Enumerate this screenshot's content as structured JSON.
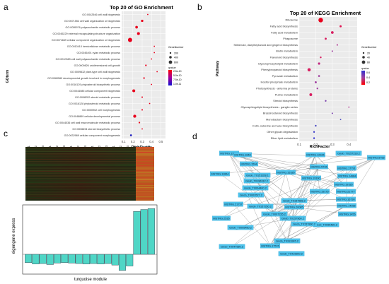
{
  "panels": {
    "a": {
      "letter": "a",
      "title": "Top 20 of GO Enrichment",
      "ylabel": "GOterm",
      "xlabel": "RichFactor",
      "legend_count_title": "GeneNumber",
      "legend_count_values": [
        "200",
        "400",
        "600"
      ],
      "legend_p_title": "qvalue",
      "legend_p_values": [
        "2.5e-10",
        "5.0e-10",
        "7.5e-10",
        "1.0e-11"
      ]
    },
    "b": {
      "letter": "b",
      "title": "Top 20 of KEGG Enrichment",
      "ylabel": "Pathway",
      "xlabel": "RichFactor",
      "legend_count_title": "GeneNumber",
      "legend_count_values": [
        "20",
        "40",
        "60"
      ],
      "legend_p_title": "qvalue",
      "legend_p_values": [
        "0.6",
        "0.4",
        "0.2"
      ]
    },
    "c": {
      "letter": "c",
      "ylabel": "eigengene express",
      "xlabel": "turquoise module"
    },
    "d": {
      "letter": "d"
    }
  },
  "chart_data": [
    {
      "type": "scatter",
      "panel": "a",
      "title": "Top 20 of GO Enrichment",
      "xlabel": "RichFactor",
      "ylabel": "GOterm",
      "xticks": [
        "0.1",
        "0.2",
        "0.3",
        "0.4",
        "0.5"
      ],
      "xlim": [
        0.08,
        0.55
      ],
      "categories": [
        "GO:0042546 cell wall biogenesis",
        "GO:0071554 cell wall organization or biogenesis",
        "GO:0005976 polysaccharide metabolic process",
        "GO:0045229 external encapsulating structure organization",
        "GO:0071669 cellular component organization or biogenesis",
        "GO:0010410 hemicellulose metabolic process",
        "GO:0045491 xylan metabolic process",
        "GO:0010383 cell wall polysaccharide metabolic process",
        "GO:0009826 unidimensional cell growth",
        "GO:0009832 plant-type cell wall biogenesis",
        "GO:0060560 developmental growth involved in morphogenesis",
        "GO:0016129 phytosteroid biosynthetic process",
        "GO:0044085 cellular component biogenesis",
        "GO:0008202 steroid metabolic process",
        "GO:0016128 phytosteroid metabolic process",
        "GO:0000902 cell morphogenesis",
        "GO:0048869 cellular developmental process",
        "GO:0044036 cell wall macromolecule metabolic process",
        "GO:0006694 steroid biosynthetic process",
        "GO:0032989 cellular component morphogenesis"
      ],
      "x": [
        0.36,
        0.3,
        0.24,
        0.26,
        0.17,
        0.43,
        0.43,
        0.4,
        0.34,
        0.46,
        0.32,
        0.4,
        0.21,
        0.3,
        0.38,
        0.3,
        0.22,
        0.27,
        0.3,
        0.18
      ],
      "size": [
        40,
        130,
        160,
        200,
        420,
        30,
        30,
        40,
        60,
        20,
        60,
        20,
        200,
        50,
        20,
        50,
        220,
        60,
        40,
        90
      ],
      "colors": [
        "#e8001c",
        "#e8001c",
        "#e8001c",
        "#e8001c",
        "#e8001c",
        "#e8001c",
        "#e8001c",
        "#e8001c",
        "#e8001c",
        "#e8001c",
        "#e8001c",
        "#e8001c",
        "#e8001c",
        "#e8001c",
        "#e8001c",
        "#e8001c",
        "#e8001c",
        "#e8001c",
        "#e8001c",
        "#2020c0"
      ]
    },
    {
      "type": "scatter",
      "panel": "b",
      "title": "Top 20 of KEGG Enrichment",
      "xlabel": "RichFactor",
      "ylabel": "Pathway",
      "xticks": [
        "0.1",
        "0.2",
        "0.3",
        "0.4"
      ],
      "xlim": [
        0.1,
        0.45
      ],
      "categories": [
        "Ribosome",
        "Fatty acid biosynthesis",
        "Fatty acid metabolism",
        "Phagosome",
        "Stilbenoid, diarylheptanoid and gingerol biosynthesis",
        "Biotin metabolism",
        "Flavonoid biosynthesis",
        "Glycerophospholipid metabolism",
        "Phenylpropanoid biosynthesis",
        "Pyruvate metabolism",
        "Inositol phosphate metabolism",
        "Photosynthesis - antenna proteins",
        "Purine metabolism",
        "Steroid biosynthesis",
        "Glycosphingolipid biosynthesis - ganglio series",
        "Brassinosteroid biosynthesis",
        "Monobactam biosynthesis",
        "Cutin, suberine and wax biosynthesis",
        "Other glycan degradation",
        "Ether lipid metabolism"
      ],
      "x": [
        0.23,
        0.35,
        0.3,
        0.26,
        0.33,
        0.3,
        0.23,
        0.22,
        0.16,
        0.22,
        0.2,
        0.21,
        0.17,
        0.26,
        0.4,
        0.3,
        0.35,
        0.2,
        0.19,
        0.19
      ],
      "size": [
        60,
        12,
        20,
        12,
        6,
        6,
        8,
        14,
        30,
        10,
        12,
        8,
        22,
        8,
        4,
        6,
        4,
        8,
        8,
        8
      ],
      "colors": [
        "#e8001c",
        "#e01050",
        "#d81e60",
        "#d81e60",
        "#b03090",
        "#a040a0",
        "#d81e60",
        "#c02880",
        "#d81e60",
        "#a040a0",
        "#a040a0",
        "#a040a0",
        "#d81e60",
        "#8048b0",
        "#b03090",
        "#8048b0",
        "#5050c0",
        "#4848c0",
        "#3838c8",
        "#3030d0"
      ]
    },
    {
      "type": "bar",
      "panel": "c",
      "xlabel": "turquoise module",
      "ylabel": "eigengene express",
      "categories": [
        "BJ-1",
        "BJ-2",
        "BJ-3",
        "HB-1",
        "HB-2",
        "HB-3",
        "HLJ-1",
        "HLJ-2",
        "HLJ-3",
        "JL-1",
        "JL-2",
        "JL-3",
        "LN-1",
        "LN-2",
        "LN-3",
        "SD-1",
        "SD-2",
        "SD-3"
      ],
      "values": [
        -0.085,
        -0.1,
        -0.095,
        -0.105,
        -0.09,
        -0.085,
        -0.09,
        -0.095,
        -0.1,
        -0.095,
        -0.1,
        -0.095,
        -0.11,
        -0.165,
        -0.12,
        0.44,
        0.46,
        0.47
      ],
      "ylim": [
        -0.2,
        0.5
      ]
    }
  ],
  "network": {
    "genes": [
      "MSTRG.13660",
      "MSTRG.1648",
      "MSTRG.12166",
      "Gnob_T0157233.2",
      "MSTRG.5755",
      "MSTRG.11664",
      "MSTRG.1594",
      "MSTRG.5736",
      "MSTRG.17791",
      "MSTRG.14884",
      "Gnob_T0151328.1",
      "MSTRG.15185",
      "MSTRG.19190",
      "MSTRG.19185",
      "Gnob_T0196312.2",
      "Gnob_T0004400.2",
      "MSTRG.21777",
      "MSTRG.19175",
      "Gnob_T0003527.2",
      "Gnob_T0157588.2",
      "MSTRG.16730",
      "MSTRG.21737",
      "MSTRG.20085",
      "Gnob_T0157250.2",
      "MSTRG.14035",
      "MSTRG.2535",
      "Gnob_T0097235.2",
      "MSTRG.1456",
      "Gnob_T0157960.2",
      "Gnob_T0095480.2",
      "Gnob_T0157890.2",
      "Gnob_T0005480.2",
      "Gnob_T0047980.2",
      "MSTRG.17576",
      "Gnob_T0313245.2",
      "Gnob_T0419600.2"
    ]
  }
}
